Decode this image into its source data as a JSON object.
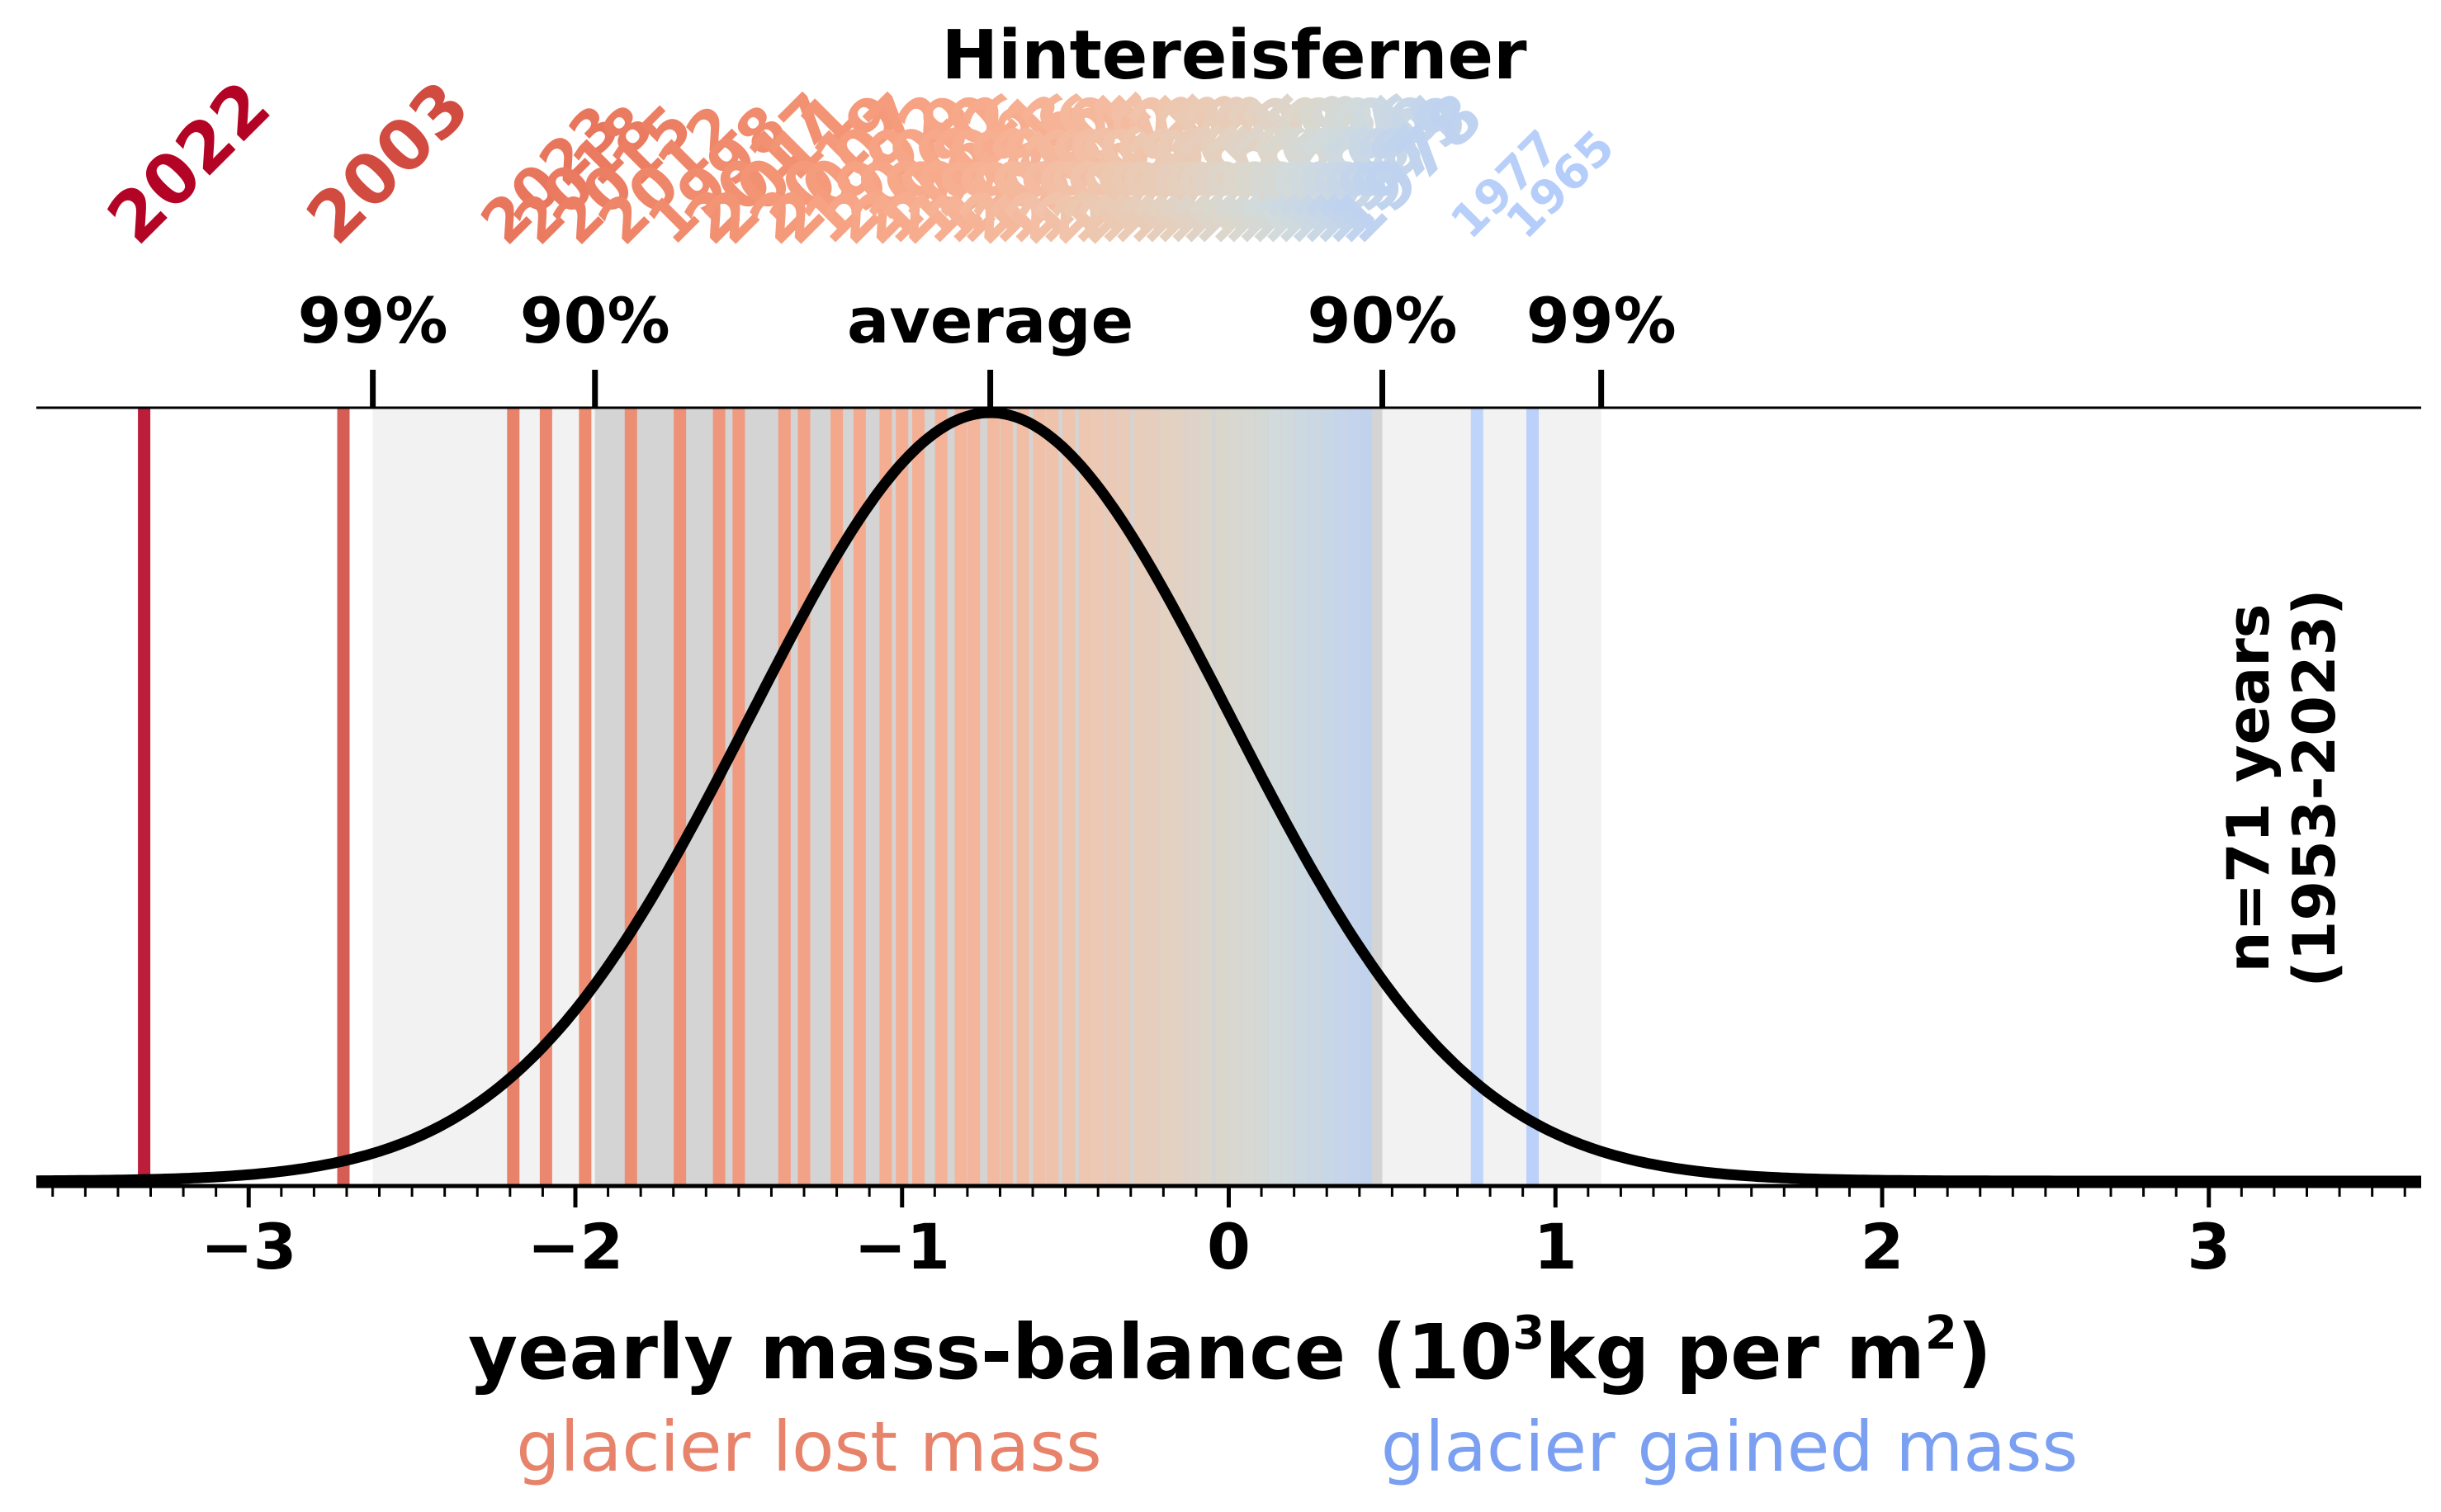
{
  "chart_data": {
    "type": "line",
    "title": "Hintereisferner",
    "xlabel_main": "yearly mass-balance (10",
    "xlabel_sup": "3",
    "xlabel_mid": "kg per m",
    "xlabel_sup2": "2",
    "xlabel_end": ")",
    "xlim": [
      -3.65,
      3.65
    ],
    "xticks": [
      -3,
      -2,
      -1,
      0,
      1,
      2,
      3
    ],
    "xtick_labels": [
      "−3",
      "−2",
      "−1",
      "0",
      "1",
      "2",
      "3"
    ],
    "distribution": {
      "mean": -0.73,
      "sd": 0.733
    },
    "markers": [
      {
        "label": "99%",
        "x": -2.62
      },
      {
        "label": "90%",
        "x": -1.94
      },
      {
        "label": "average",
        "x": -0.73
      },
      {
        "label": "90%",
        "x": 0.47
      },
      {
        "label": "99%",
        "x": 1.14
      }
    ],
    "bands": [
      {
        "from": -2.62,
        "to": 1.14,
        "shade": "light"
      },
      {
        "from": -1.94,
        "to": 0.47,
        "shade": "dark"
      }
    ],
    "years": [
      {
        "year": "2022",
        "value": -3.32,
        "color": "#b40426"
      },
      {
        "year": "2003",
        "value": -2.71,
        "color": "#d24b40"
      },
      {
        "year": "2023",
        "value": -2.19,
        "color": "#e8765c"
      },
      {
        "year": "2018",
        "value": -2.09,
        "color": "#ea7b60"
      },
      {
        "year": "2015",
        "value": -1.97,
        "color": "#ec7f63"
      },
      {
        "year": "2012",
        "value": -1.83,
        "color": "#ee8669"
      },
      {
        "year": "1998",
        "value": -1.68,
        "color": "#f08b6e"
      },
      {
        "year": "2017",
        "value": -1.56,
        "color": "#f29072"
      },
      {
        "year": "2011",
        "value": -1.5,
        "color": "#f39475"
      },
      {
        "year": "2019",
        "value": -1.36,
        "color": "#f49a7b"
      },
      {
        "year": "2007",
        "value": -1.3,
        "color": "#f59c7d"
      },
      {
        "year": "1992",
        "value": -1.2,
        "color": "#f6a283"
      },
      {
        "year": "2009",
        "value": -1.13,
        "color": "#f6a586"
      },
      {
        "year": "2000",
        "value": -1.05,
        "color": "#f7a889"
      },
      {
        "year": "1982",
        "value": -1.0,
        "color": "#f7aa8c"
      },
      {
        "year": "2006",
        "value": -0.95,
        "color": "#f7ac8e"
      },
      {
        "year": "1991",
        "value": -0.88,
        "color": "#f7af91"
      },
      {
        "year": "1983",
        "value": -0.82,
        "color": "#f7b194"
      },
      {
        "year": "1986",
        "value": -0.78,
        "color": "#f6b396"
      },
      {
        "year": "2016",
        "value": -0.72,
        "color": "#f5b89b"
      },
      {
        "year": "1990",
        "value": -0.68,
        "color": "#f4b99d"
      },
      {
        "year": "1994",
        "value": -0.63,
        "color": "#f4bba0"
      },
      {
        "year": "2004",
        "value": -0.58,
        "color": "#f3bea3"
      },
      {
        "year": "1987",
        "value": -0.54,
        "color": "#f2c0a6"
      },
      {
        "year": "2002",
        "value": -0.49,
        "color": "#f1c3aa"
      },
      {
        "year": "1964",
        "value": -0.44,
        "color": "#efc5ac"
      },
      {
        "year": "2013",
        "value": -0.4,
        "color": "#edc8b0"
      },
      {
        "year": "1985",
        "value": -0.36,
        "color": "#ecc9b2"
      },
      {
        "year": "1993",
        "value": -0.32,
        "color": "#eacbb5"
      },
      {
        "year": "1988",
        "value": -0.27,
        "color": "#e9ccb8"
      },
      {
        "year": "1973",
        "value": -0.23,
        "color": "#e7cdbb"
      },
      {
        "year": "1963",
        "value": -0.19,
        "color": "#e5d0be"
      },
      {
        "year": "1971",
        "value": -0.15,
        "color": "#e3d1c2"
      },
      {
        "year": "1959",
        "value": -0.11,
        "color": "#e0d3c6"
      },
      {
        "year": "1975",
        "value": -0.07,
        "color": "#ddd5c9"
      },
      {
        "year": "1962",
        "value": -0.02,
        "color": "#dcd6cb"
      },
      {
        "year": "1970",
        "value": 0.02,
        "color": "#d9d8cf"
      },
      {
        "year": "1968",
        "value": 0.06,
        "color": "#d7d8d3"
      },
      {
        "year": "1958",
        "value": 0.1,
        "color": "#d4d9d6"
      },
      {
        "year": "1972",
        "value": 0.14,
        "color": "#d2dadb"
      },
      {
        "year": "1960",
        "value": 0.18,
        "color": "#cfdade"
      },
      {
        "year": "1974",
        "value": 0.22,
        "color": "#ccd9e2"
      },
      {
        "year": "1966",
        "value": 0.26,
        "color": "#cad8e5"
      },
      {
        "year": "1980",
        "value": 0.3,
        "color": "#c7d7e8"
      },
      {
        "year": "1984",
        "value": 0.34,
        "color": "#c4d5eb"
      },
      {
        "year": "1979",
        "value": 0.38,
        "color": "#c1d4ee"
      },
      {
        "year": "1978",
        "value": 0.42,
        "color": "#bfd2f0"
      },
      {
        "year": "1977",
        "value": 0.76,
        "color": "#b8d0f9"
      },
      {
        "year": "1965",
        "value": 0.93,
        "color": "#b5cdfa"
      }
    ],
    "visible_year_labels": [
      "2022",
      "2003",
      "2023",
      "2018",
      "2015",
      "1979",
      "1978",
      "1977",
      "1965"
    ],
    "legend_lost": "glacier lost mass",
    "legend_gained": "glacier gained mass",
    "legend_lost_color": "#e8836b",
    "legend_gained_color": "#7b9ff1",
    "n_label_line1": "n=71 years",
    "n_label_line2": "(1953-2023)"
  }
}
